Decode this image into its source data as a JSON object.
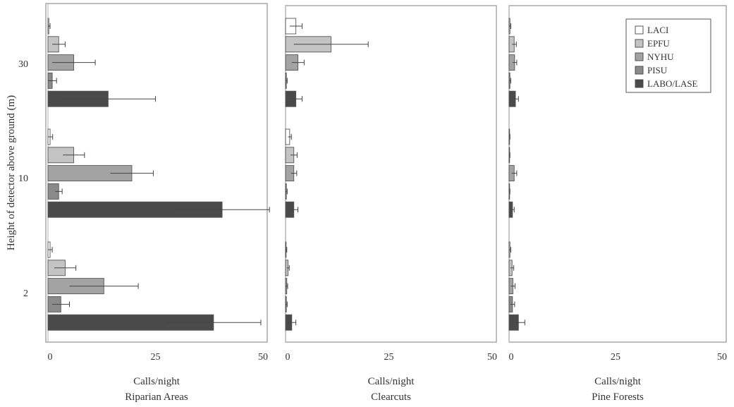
{
  "chart_data": {
    "type": "bar",
    "orientation": "horizontal",
    "ylabel": "Height of detector above ground (m)",
    "categories": [
      "30",
      "10",
      "2"
    ],
    "grid": false,
    "legend_position": "top-right",
    "legend": {
      "items": [
        {
          "name": "LACI",
          "color": "#ffffff"
        },
        {
          "name": "EPFU",
          "color": "#c4c4c4"
        },
        {
          "name": "NYHU",
          "color": "#a3a3a3"
        },
        {
          "name": "PISU",
          "color": "#8a8a8a"
        },
        {
          "name": "LABO/LASE",
          "color": "#4a4a4a"
        }
      ]
    },
    "panels": [
      {
        "xlabel": "Calls/night",
        "subtitle": "Riparian Areas",
        "xlim": [
          0,
          50
        ],
        "xticks": [
          "0",
          "25",
          "50"
        ],
        "series": [
          {
            "name": "LACI",
            "values": [
              0.2,
              0.5,
              0.5
            ],
            "errors": [
              0.3,
              0.6,
              0.5
            ]
          },
          {
            "name": "EPFU",
            "values": [
              2.5,
              6,
              4
            ],
            "errors": [
              1.5,
              2.5,
              2.5
            ]
          },
          {
            "name": "NYHU",
            "values": [
              6,
              19.5,
              13
            ],
            "errors": [
              5,
              5,
              8
            ]
          },
          {
            "name": "PISU",
            "values": [
              1,
              2.5,
              3
            ],
            "errors": [
              1,
              0.8,
              2
            ]
          },
          {
            "name": "LABO/LASE",
            "values": [
              14,
              40.5,
              38.5
            ],
            "errors": [
              11,
              11,
              11
            ]
          }
        ]
      },
      {
        "xlabel": "Calls/night",
        "subtitle": "Clearcuts",
        "xlim": [
          0,
          50
        ],
        "xticks": [
          "0",
          "25",
          "50"
        ],
        "series": [
          {
            "name": "LACI",
            "values": [
              2.5,
              1,
              0.1
            ],
            "errors": [
              1.5,
              0.4,
              0.2
            ]
          },
          {
            "name": "EPFU",
            "values": [
              11,
              2,
              0.6
            ],
            "errors": [
              9,
              0.8,
              0.3
            ]
          },
          {
            "name": "NYHU",
            "values": [
              3,
              2,
              0.3
            ],
            "errors": [
              1.5,
              0.7,
              0.2
            ]
          },
          {
            "name": "PISU",
            "values": [
              0.2,
              0.2,
              0.2
            ],
            "errors": [
              0.2,
              0.2,
              0.2
            ]
          },
          {
            "name": "LABO/LASE",
            "values": [
              2.5,
              2,
              1.5
            ],
            "errors": [
              1.5,
              1,
              1
            ]
          }
        ]
      },
      {
        "xlabel": "Calls/night",
        "subtitle": "Pine Forests",
        "xlim": [
          0,
          50
        ],
        "xticks": [
          "0",
          "25",
          "50"
        ],
        "series": [
          {
            "name": "LACI",
            "values": [
              0.2,
              0.1,
              0.2
            ],
            "errors": [
              0.2,
              0.1,
              0.2
            ]
          },
          {
            "name": "EPFU",
            "values": [
              1.2,
              0.1,
              0.7
            ],
            "errors": [
              0.5,
              0.1,
              0.4
            ]
          },
          {
            "name": "NYHU",
            "values": [
              1.3,
              1.2,
              0.9
            ],
            "errors": [
              0.5,
              0.6,
              0.5
            ]
          },
          {
            "name": "PISU",
            "values": [
              0.2,
              0.1,
              0.8
            ],
            "errors": [
              0.2,
              0.1,
              0.5
            ]
          },
          {
            "name": "LABO/LASE",
            "values": [
              1.5,
              0.8,
              2.2
            ],
            "errors": [
              0.7,
              0.4,
              1.5
            ]
          }
        ]
      }
    ]
  }
}
